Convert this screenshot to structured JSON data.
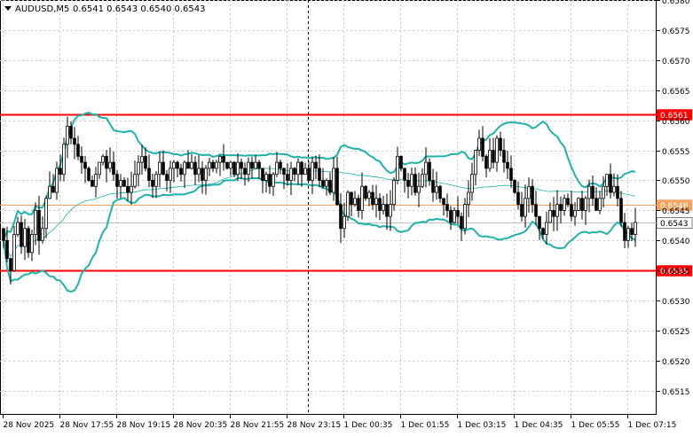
{
  "header": {
    "symbol": "AUDUSD,M5",
    "ohlc": "0.6541 0.6543 0.6540 0.6543"
  },
  "colors": {
    "candle": "#000000",
    "band": "#20B2AA",
    "ma_slow": "#20B2AA",
    "resistance": "#FF0000",
    "support": "#FF0000",
    "mid_level": "#F4A460",
    "price_line": "#C0C0C0",
    "grid": "#C8C8C8",
    "axis_text": "#000000",
    "label_text": "#FFFFFF"
  },
  "chart_data": {
    "type": "candlestick",
    "grid": true,
    "ylim": [
      0.6511,
      0.658
    ],
    "y_ticks": [
      "0.6580",
      "0.6575",
      "0.6570",
      "0.6565",
      "0.6560",
      "0.6555",
      "0.6550",
      "0.6545",
      "0.6540",
      "0.6535",
      "0.6530",
      "0.6525",
      "0.6520",
      "0.6515"
    ],
    "x_ticks": [
      "28 Nov 2025",
      "28 Nov 17:55",
      "28 Nov 19:15",
      "28 Nov 20:35",
      "28 Nov 21:55",
      "28 Nov 23:15",
      "1 Dec 00:35",
      "1 Dec 01:55",
      "1 Dec 03:15",
      "1 Dec 04:35",
      "1 Dec 05:55",
      "1 Dec 07:15"
    ],
    "separator_after": "28 Nov 23:15",
    "levels": [
      {
        "name": "resistance",
        "value": 0.6561,
        "label": "0.6561"
      },
      {
        "name": "mid",
        "value": 0.6546,
        "label": "0.6546"
      },
      {
        "name": "last-price",
        "value": 0.6543,
        "label": "0.6543"
      },
      {
        "name": "support",
        "value": 0.6535,
        "label": "0.6535"
      }
    ],
    "candles_close": [
      0.654,
      0.6537,
      0.6535,
      0.6541,
      0.6543,
      0.6539,
      0.6542,
      0.6538,
      0.6541,
      0.6545,
      0.654,
      0.6542,
      0.6547,
      0.6549,
      0.6548,
      0.6552,
      0.6551,
      0.6556,
      0.6559,
      0.6557,
      0.6556,
      0.6554,
      0.6553,
      0.6552,
      0.655,
      0.6549,
      0.6551,
      0.6553,
      0.6554,
      0.6552,
      0.6553,
      0.6551,
      0.6549,
      0.655,
      0.6549,
      0.6548,
      0.6549,
      0.6551,
      0.6553,
      0.6554,
      0.6552,
      0.655,
      0.6549,
      0.6551,
      0.6553,
      0.6551,
      0.655,
      0.6552,
      0.6553,
      0.6552,
      0.6551,
      0.6553,
      0.6552,
      0.6553,
      0.6551,
      0.6552,
      0.655,
      0.6552,
      0.6553,
      0.6552,
      0.6553,
      0.6554,
      0.6553,
      0.6552,
      0.6553,
      0.6551,
      0.6553,
      0.6552,
      0.6551,
      0.6553,
      0.6552,
      0.6553,
      0.6552,
      0.655,
      0.6551,
      0.6549,
      0.6551,
      0.6553,
      0.6552,
      0.6551,
      0.655,
      0.6552,
      0.6551,
      0.6553,
      0.6551,
      0.6552,
      0.655,
      0.6553,
      0.6552,
      0.655,
      0.6549,
      0.655,
      0.6548,
      0.6552,
      0.6546,
      0.6542,
      0.6544,
      0.6548,
      0.6546,
      0.6547,
      0.6545,
      0.6549,
      0.6547,
      0.6548,
      0.6546,
      0.6547,
      0.6545,
      0.6546,
      0.6544,
      0.6546,
      0.655,
      0.6554,
      0.6552,
      0.655,
      0.6549,
      0.6551,
      0.6548,
      0.6549,
      0.6551,
      0.6553,
      0.655,
      0.6548,
      0.6549,
      0.6547,
      0.6546,
      0.6545,
      0.6543,
      0.6545,
      0.6544,
      0.6542,
      0.6546,
      0.6548,
      0.6551,
      0.6555,
      0.6557,
      0.6554,
      0.6552,
      0.6555,
      0.6553,
      0.6557,
      0.6555,
      0.6553,
      0.6552,
      0.655,
      0.6548,
      0.6546,
      0.6544,
      0.6547,
      0.6549,
      0.6546,
      0.6544,
      0.6542,
      0.6541,
      0.6543,
      0.6545,
      0.6544,
      0.6546,
      0.6545,
      0.6547,
      0.6546,
      0.6544,
      0.6545,
      0.6547,
      0.6545,
      0.6547,
      0.6549,
      0.6547,
      0.6545,
      0.6547,
      0.6549,
      0.6551,
      0.6548,
      0.6549,
      0.6547,
      0.6543,
      0.654,
      0.6542,
      0.6541,
      0.6543
    ]
  }
}
